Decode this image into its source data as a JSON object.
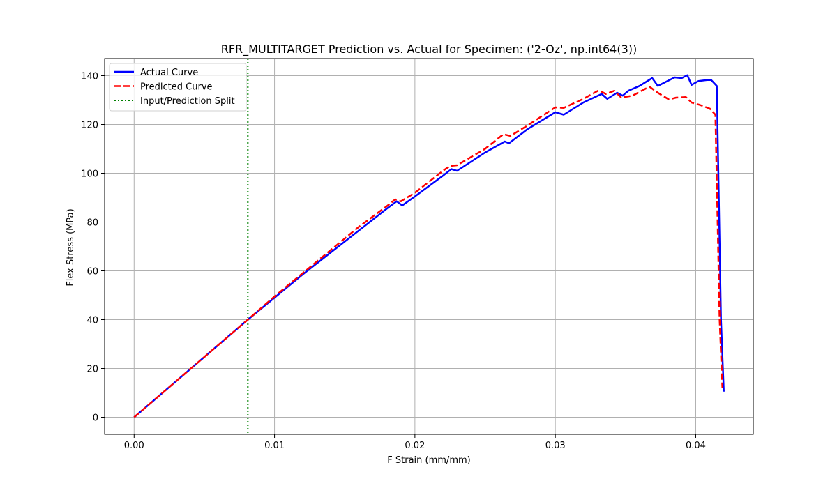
{
  "chart_data": {
    "type": "line",
    "title": "RFR_MULTITARGET Prediction vs. Actual for Specimen: ('2-Oz', np.int64(3))",
    "xlabel": "F Strain (mm/mm)",
    "ylabel": "Flex Stress (MPa)",
    "xlim": [
      -0.0021,
      0.0441
    ],
    "ylim": [
      -7,
      147
    ],
    "xticks": [
      0.0,
      0.01,
      0.02,
      0.03,
      0.04
    ],
    "xtick_labels": [
      "0.00",
      "0.01",
      "0.02",
      "0.03",
      "0.04"
    ],
    "yticks": [
      0,
      20,
      40,
      60,
      80,
      100,
      120,
      140
    ],
    "ytick_labels": [
      "0",
      "20",
      "40",
      "60",
      "80",
      "100",
      "120",
      "140"
    ],
    "grid": true,
    "legend_position": "top-left",
    "split_x": 0.0081,
    "series": [
      {
        "name": "Actual Curve",
        "color": "#0000ff",
        "style": "solid",
        "points": [
          [
            0.0,
            0.0
          ],
          [
            0.0081,
            40.0
          ],
          [
            0.01,
            49.0
          ],
          [
            0.012,
            58.5
          ],
          [
            0.014,
            67.5
          ],
          [
            0.016,
            76.5
          ],
          [
            0.018,
            85.5
          ],
          [
            0.0187,
            88.5
          ],
          [
            0.0191,
            86.8
          ],
          [
            0.02,
            90.5
          ],
          [
            0.022,
            99.0
          ],
          [
            0.0226,
            101.7
          ],
          [
            0.023,
            101.0
          ],
          [
            0.025,
            108.5
          ],
          [
            0.0264,
            113.0
          ],
          [
            0.0267,
            112.3
          ],
          [
            0.028,
            118.0
          ],
          [
            0.03,
            125.0
          ],
          [
            0.0306,
            124.0
          ],
          [
            0.032,
            129.0
          ],
          [
            0.0333,
            132.5
          ],
          [
            0.0337,
            130.5
          ],
          [
            0.0344,
            133.0
          ],
          [
            0.0348,
            131.8
          ],
          [
            0.0352,
            133.8
          ],
          [
            0.036,
            135.8
          ],
          [
            0.0369,
            139.0
          ],
          [
            0.0373,
            135.8
          ],
          [
            0.0385,
            139.3
          ],
          [
            0.039,
            139.0
          ],
          [
            0.0394,
            140.2
          ],
          [
            0.0397,
            136.2
          ],
          [
            0.0402,
            137.8
          ],
          [
            0.0408,
            138.2
          ],
          [
            0.0411,
            138.2
          ],
          [
            0.0415,
            135.8
          ],
          [
            0.0418,
            40.0
          ],
          [
            0.042,
            10.5
          ]
        ]
      },
      {
        "name": "Predicted Curve",
        "color": "#ff0000",
        "style": "dashed",
        "points": [
          [
            0.0,
            0.0
          ],
          [
            0.0081,
            40.0
          ],
          [
            0.01,
            49.5
          ],
          [
            0.012,
            59.0
          ],
          [
            0.014,
            68.5
          ],
          [
            0.016,
            78.0
          ],
          [
            0.018,
            86.5
          ],
          [
            0.0186,
            89.3
          ],
          [
            0.019,
            88.5
          ],
          [
            0.02,
            92.0
          ],
          [
            0.022,
            101.0
          ],
          [
            0.0225,
            103.0
          ],
          [
            0.023,
            103.3
          ],
          [
            0.025,
            110.0
          ],
          [
            0.0263,
            116.0
          ],
          [
            0.0268,
            115.3
          ],
          [
            0.028,
            119.5
          ],
          [
            0.03,
            127.0
          ],
          [
            0.0306,
            126.8
          ],
          [
            0.032,
            130.5
          ],
          [
            0.0331,
            134.0
          ],
          [
            0.0336,
            132.5
          ],
          [
            0.0342,
            133.8
          ],
          [
            0.0347,
            131.0
          ],
          [
            0.0355,
            131.8
          ],
          [
            0.0367,
            135.5
          ],
          [
            0.0373,
            133.0
          ],
          [
            0.0381,
            130.2
          ],
          [
            0.0386,
            131.0
          ],
          [
            0.0393,
            131.2
          ],
          [
            0.0397,
            129.0
          ],
          [
            0.0403,
            128.0
          ],
          [
            0.041,
            126.5
          ],
          [
            0.0414,
            124.0
          ],
          [
            0.0417,
            40.0
          ],
          [
            0.0419,
            12.0
          ]
        ]
      },
      {
        "name": "Input/Prediction Split",
        "color": "#008000",
        "style": "dotted"
      }
    ]
  }
}
